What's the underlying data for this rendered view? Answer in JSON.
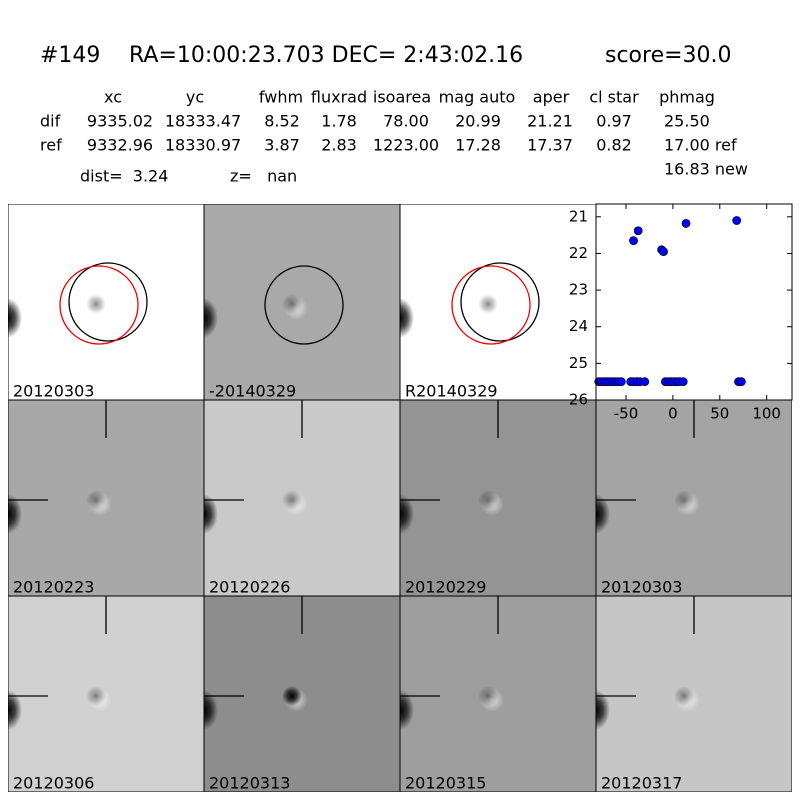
{
  "header": {
    "id": "#149",
    "coords": "RA=10:00:23.703 DEC= 2:43:02.16",
    "score": "score=30.0"
  },
  "table": {
    "columns": [
      "xc",
      "yc",
      "fwhm",
      "fluxrad",
      "isoarea",
      "mag auto",
      "aper",
      "cl star",
      "phmag"
    ],
    "rows": [
      [
        "dif",
        "9335.02",
        "18333.47",
        "8.52",
        "1.78",
        "78.00",
        "20.99",
        "21.21",
        "0.97",
        "25.50"
      ],
      [
        "ref",
        "9332.96",
        "18330.97",
        "3.87",
        "2.83",
        "1223.00",
        "17.28",
        "17.37",
        "0.82",
        "17.00 ref"
      ]
    ],
    "note": "16.83 new"
  },
  "summary": {
    "dist": "dist=  3.24",
    "z": "z=   nan"
  },
  "panels": [
    {
      "label": "20120303"
    },
    {
      "label": "-20140329"
    },
    {
      "label": "R20140329"
    },
    {
      "label": "20120223"
    },
    {
      "label": "20120226"
    },
    {
      "label": "20120229"
    },
    {
      "label": "20120303",
      "color": "#ff0000"
    },
    {
      "label": "20120306"
    },
    {
      "label": "20120313"
    },
    {
      "label": "20120315"
    },
    {
      "label": "20120317"
    }
  ],
  "chart_data": {
    "type": "scatter",
    "x": [
      -79,
      -76,
      -73,
      -70,
      -67,
      -64,
      -61,
      -58,
      -55,
      -45,
      -42,
      -38,
      -35,
      -30,
      -42,
      -37,
      -12,
      -10,
      -8,
      -5,
      -2,
      1,
      4,
      7,
      11,
      14,
      68,
      70,
      73
    ],
    "values": [
      25.5,
      25.5,
      25.5,
      25.5,
      25.5,
      25.5,
      25.5,
      25.5,
      25.5,
      25.5,
      25.5,
      25.5,
      25.5,
      25.5,
      21.65,
      21.38,
      21.9,
      21.95,
      25.5,
      25.5,
      25.5,
      25.5,
      25.5,
      25.5,
      25.5,
      21.18,
      21.1,
      25.5,
      25.5
    ],
    "color": "#0000ff",
    "xlim": [
      -82,
      127
    ],
    "ylim": [
      26,
      20.65
    ],
    "xticks": [
      -50,
      0,
      50,
      100
    ],
    "yticks": [
      21,
      22,
      23,
      24,
      25,
      26
    ]
  }
}
